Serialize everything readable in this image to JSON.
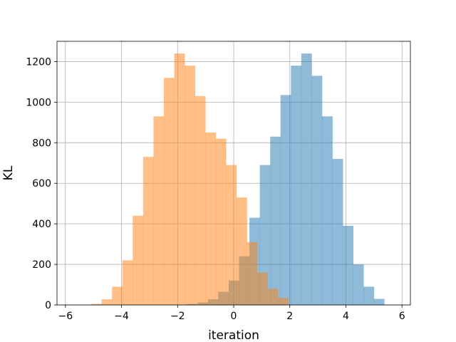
{
  "chart_data": {
    "type": "bar",
    "title": "",
    "xlabel": "iteration",
    "ylabel": "KL",
    "xlim": [
      -6.3,
      6.3
    ],
    "ylim": [
      0,
      1300
    ],
    "xticks": [
      -6,
      -4,
      -2,
      0,
      2,
      4,
      6
    ],
    "yticks": [
      0,
      200,
      400,
      600,
      800,
      1000,
      1200
    ],
    "grid": true,
    "bin_width": 0.37,
    "series": [
      {
        "color": "#1f77b4",
        "opacity": 0.5,
        "bin_edges": [
          -1.66,
          -1.29,
          -0.92,
          -0.55,
          -0.18,
          0.19,
          0.56,
          0.93,
          1.3,
          1.67,
          2.04,
          2.41,
          2.78,
          3.15,
          3.52,
          3.89,
          4.26,
          4.63,
          5.0
        ],
        "values": [
          5,
          12,
          28,
          65,
          120,
          240,
          430,
          690,
          830,
          1035,
          1180,
          1240,
          1130,
          930,
          720,
          390,
          200,
          90,
          30
        ]
      },
      {
        "color": "#ff7f0e",
        "opacity": 0.5,
        "bin_edges": [
          -5.08,
          -4.71,
          -4.34,
          -3.97,
          -3.6,
          -3.23,
          -2.86,
          -2.49,
          -2.12,
          -1.75,
          -1.38,
          -1.01,
          -0.64,
          -0.27,
          0.1,
          0.47,
          0.84,
          1.21,
          1.58
        ],
        "values": [
          5,
          28,
          90,
          220,
          440,
          730,
          930,
          1120,
          1240,
          1180,
          1030,
          850,
          820,
          690,
          530,
          310,
          160,
          80,
          35
        ]
      }
    ]
  }
}
